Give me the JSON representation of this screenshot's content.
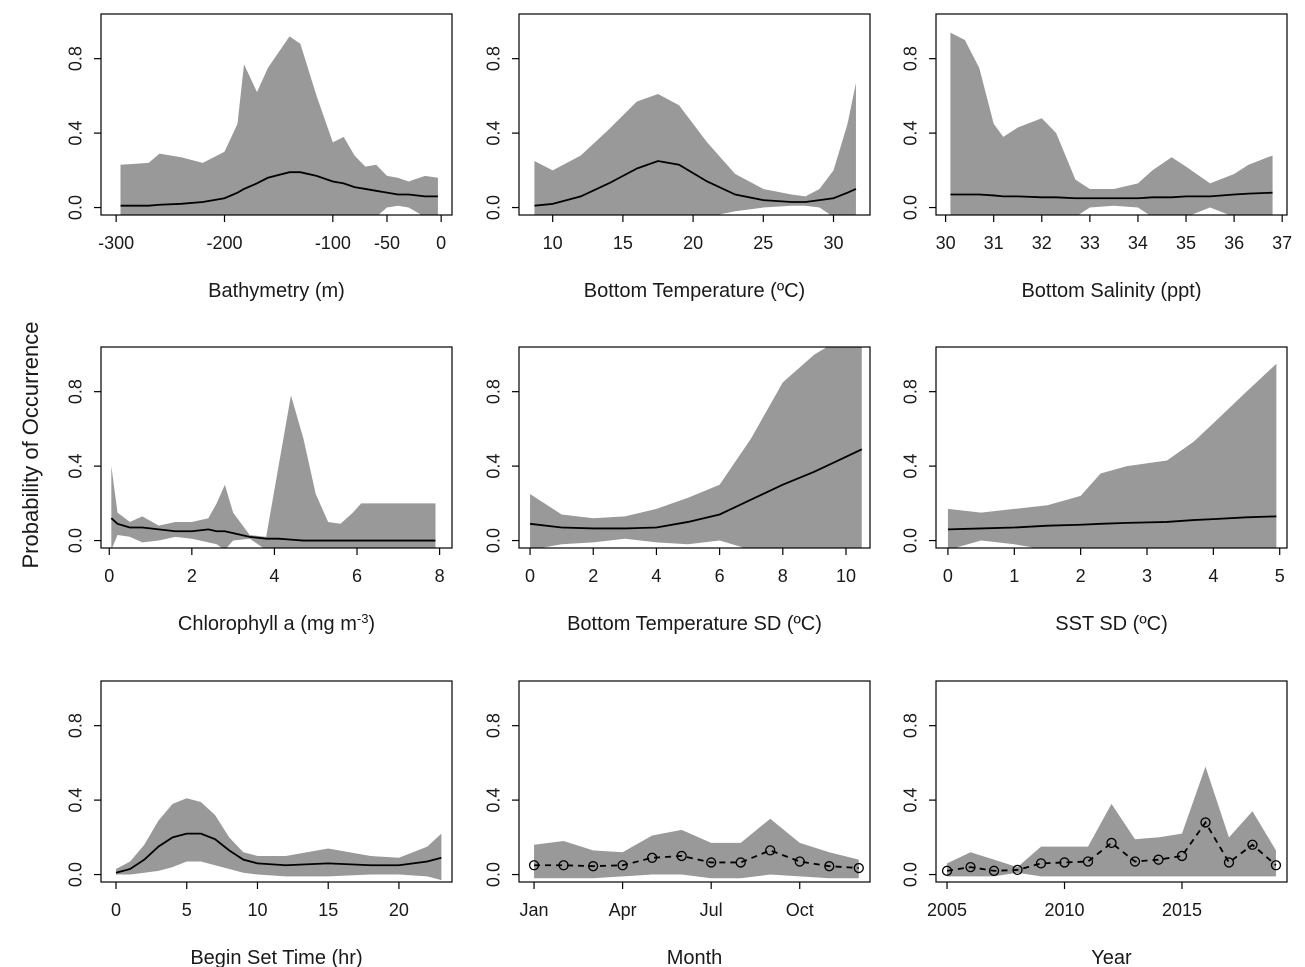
{
  "ylabel": "Probability of Occurrence",
  "chart_data": [
    {
      "type": "line",
      "xlabel": "Bathymetry (m)",
      "xlim": [
        -314,
        10
      ],
      "xticks": [
        -300,
        -200,
        -100,
        -50,
        0
      ],
      "ylim": [
        -0.04,
        1.04
      ],
      "yticks": [
        {
          "value": 0,
          "label": "0.0"
        },
        0.4,
        0.8
      ],
      "x": [
        -296,
        -270,
        -260,
        -240,
        -220,
        -200,
        -188,
        -182,
        -170,
        -160,
        -140,
        -130,
        -115,
        -100,
        -90,
        -80,
        -70,
        -60,
        -50,
        -40,
        -30,
        -15,
        -3
      ],
      "series": [
        {
          "color": "#000000",
          "values": [
            0.01,
            0.01,
            0.015,
            0.02,
            0.03,
            0.05,
            0.08,
            0.1,
            0.13,
            0.16,
            0.19,
            0.19,
            0.17,
            0.14,
            0.13,
            0.11,
            0.1,
            0.09,
            0.08,
            0.07,
            0.07,
            0.06,
            0.06
          ]
        }
      ],
      "band": {
        "color": "#999999",
        "upper": [
          0.23,
          0.24,
          0.29,
          0.27,
          0.24,
          0.3,
          0.45,
          0.77,
          0.62,
          0.75,
          0.92,
          0.88,
          0.6,
          0.35,
          0.38,
          0.28,
          0.22,
          0.23,
          0.17,
          0.16,
          0.14,
          0.17,
          0.16
        ],
        "lower": [
          -0.05,
          -0.05,
          -0.05,
          -0.05,
          -0.05,
          -0.05,
          -0.05,
          -0.05,
          -0.05,
          -0.05,
          -0.05,
          -0.05,
          -0.05,
          -0.05,
          -0.05,
          -0.05,
          -0.05,
          -0.05,
          0.0,
          0.01,
          0.0,
          -0.05,
          -0.05
        ]
      }
    },
    {
      "type": "line",
      "xlabel": "Bottom Temperature (ºC)",
      "xlim": [
        7.6,
        32.6
      ],
      "xticks": [
        10,
        15,
        20,
        25,
        30
      ],
      "ylim": [
        -0.04,
        1.04
      ],
      "yticks": [
        {
          "value": 0,
          "label": "0.0"
        },
        0.4,
        0.8
      ],
      "x": [
        8.7,
        10,
        12,
        14,
        16,
        17.5,
        19,
        21,
        23,
        25,
        27,
        28,
        29,
        30,
        31,
        31.6
      ],
      "series": [
        {
          "color": "#000000",
          "values": [
            0.01,
            0.02,
            0.06,
            0.13,
            0.21,
            0.25,
            0.23,
            0.14,
            0.07,
            0.04,
            0.03,
            0.03,
            0.04,
            0.05,
            0.08,
            0.1
          ]
        }
      ],
      "band": {
        "color": "#999999",
        "upper": [
          0.25,
          0.2,
          0.28,
          0.42,
          0.57,
          0.61,
          0.55,
          0.35,
          0.18,
          0.1,
          0.07,
          0.06,
          0.1,
          0.2,
          0.45,
          0.67
        ],
        "lower": [
          -0.05,
          -0.05,
          -0.05,
          -0.05,
          -0.05,
          -0.05,
          -0.05,
          -0.05,
          -0.02,
          0.0,
          0.01,
          0.01,
          0.0,
          -0.05,
          -0.05,
          -0.05
        ]
      }
    },
    {
      "type": "line",
      "xlabel": "Bottom Salinity (ppt)",
      "xlim": [
        29.8,
        37.1
      ],
      "xticks": [
        30,
        31,
        32,
        33,
        34,
        35,
        36,
        37
      ],
      "ylim": [
        -0.04,
        1.04
      ],
      "yticks": [
        {
          "value": 0,
          "label": "0.0"
        },
        0.4,
        0.8
      ],
      "x": [
        30.1,
        30.4,
        30.7,
        31,
        31.2,
        31.5,
        32,
        32.3,
        32.7,
        33,
        33.5,
        34,
        34.3,
        34.7,
        35,
        35.5,
        36,
        36.3,
        36.8
      ],
      "series": [
        {
          "color": "#000000",
          "values": [
            0.07,
            0.07,
            0.07,
            0.065,
            0.06,
            0.06,
            0.055,
            0.055,
            0.05,
            0.05,
            0.05,
            0.05,
            0.055,
            0.055,
            0.06,
            0.06,
            0.07,
            0.075,
            0.08
          ]
        }
      ],
      "band": {
        "color": "#999999",
        "upper": [
          0.94,
          0.9,
          0.75,
          0.45,
          0.38,
          0.43,
          0.48,
          0.4,
          0.15,
          0.1,
          0.1,
          0.13,
          0.2,
          0.27,
          0.22,
          0.13,
          0.18,
          0.23,
          0.28
        ],
        "lower": [
          -0.05,
          -0.05,
          -0.05,
          -0.05,
          -0.05,
          -0.05,
          -0.05,
          -0.05,
          -0.05,
          0.0,
          0.01,
          0.0,
          -0.05,
          -0.05,
          -0.05,
          0.0,
          -0.05,
          -0.05,
          -0.05
        ]
      }
    },
    {
      "type": "line",
      "xlabel": [
        "Chlorophyll a (mg m",
        "-3",
        ")"
      ],
      "xlim": [
        -0.2,
        8.3
      ],
      "xticks": [
        0,
        2,
        4,
        6,
        8
      ],
      "ylim": [
        -0.04,
        1.04
      ],
      "yticks": [
        {
          "value": 0,
          "label": "0.0"
        },
        0.4,
        0.8
      ],
      "x": [
        0.05,
        0.2,
        0.5,
        0.8,
        1.2,
        1.6,
        2,
        2.4,
        2.6,
        2.8,
        3,
        3.4,
        3.8,
        4.1,
        4.4,
        4.7,
        5,
        5.3,
        5.6,
        5.9,
        6.1,
        6.5,
        7,
        7.9
      ],
      "series": [
        {
          "color": "#000000",
          "values": [
            0.12,
            0.09,
            0.07,
            0.07,
            0.06,
            0.05,
            0.05,
            0.06,
            0.05,
            0.05,
            0.04,
            0.02,
            0.01,
            0.01,
            0.005,
            0,
            0,
            0,
            0,
            0,
            0,
            0,
            0,
            0
          ]
        }
      ],
      "band": {
        "color": "#999999",
        "upper": [
          0.4,
          0.15,
          0.1,
          0.13,
          0.08,
          0.1,
          0.1,
          0.12,
          0.2,
          0.3,
          0.15,
          0.03,
          0.02,
          0.4,
          0.78,
          0.55,
          0.25,
          0.1,
          0.09,
          0.15,
          0.2,
          0.2,
          0.2,
          0.2
        ],
        "lower": [
          -0.05,
          0.03,
          0.02,
          -0.01,
          0.0,
          0.02,
          0.01,
          -0.01,
          -0.02,
          -0.05,
          0.0,
          0.01,
          -0.05,
          -0.05,
          -0.05,
          -0.05,
          -0.05,
          -0.05,
          -0.05,
          -0.05,
          -0.05,
          -0.05,
          -0.05,
          -0.05
        ]
      }
    },
    {
      "type": "line",
      "xlabel": "Bottom Temperature SD (ºC)",
      "xlim": [
        -0.35,
        10.76
      ],
      "xticks": [
        0,
        2,
        4,
        6,
        8,
        10
      ],
      "ylim": [
        -0.04,
        1.04
      ],
      "yticks": [
        {
          "value": 0,
          "label": "0.0"
        },
        0.4,
        0.8
      ],
      "x": [
        0,
        1,
        2,
        3,
        4,
        5,
        6,
        7,
        8,
        9,
        10,
        10.5
      ],
      "series": [
        {
          "color": "#000000",
          "values": [
            0.09,
            0.07,
            0.065,
            0.065,
            0.07,
            0.1,
            0.14,
            0.22,
            0.3,
            0.37,
            0.45,
            0.49
          ]
        }
      ],
      "band": {
        "color": "#999999",
        "upper": [
          0.25,
          0.14,
          0.12,
          0.13,
          0.17,
          0.23,
          0.3,
          0.55,
          0.85,
          1.0,
          1.1,
          1.1
        ],
        "lower": [
          -0.05,
          -0.02,
          -0.01,
          0.01,
          -0.01,
          -0.02,
          0.0,
          -0.05,
          -0.05,
          -0.05,
          -0.05,
          -0.05
        ]
      }
    },
    {
      "type": "line",
      "xlabel": "SST SD (ºC)",
      "xlim": [
        -0.18,
        5.11
      ],
      "xticks": [
        0,
        1,
        2,
        3,
        4,
        5
      ],
      "ylim": [
        -0.04,
        1.04
      ],
      "yticks": [
        {
          "value": 0,
          "label": "0.0"
        },
        0.4,
        0.8
      ],
      "x": [
        0,
        0.5,
        1,
        1.5,
        2,
        2.3,
        2.7,
        3.3,
        3.7,
        4,
        4.5,
        4.95
      ],
      "series": [
        {
          "color": "#000000",
          "values": [
            0.06,
            0.065,
            0.07,
            0.08,
            0.085,
            0.09,
            0.095,
            0.1,
            0.11,
            0.115,
            0.125,
            0.13
          ]
        }
      ],
      "band": {
        "color": "#999999",
        "upper": [
          0.17,
          0.15,
          0.17,
          0.19,
          0.24,
          0.36,
          0.4,
          0.43,
          0.53,
          0.63,
          0.8,
          0.95
        ],
        "lower": [
          -0.05,
          0.0,
          -0.02,
          -0.05,
          -0.05,
          -0.05,
          -0.05,
          -0.05,
          -0.05,
          -0.05,
          -0.05,
          -0.05
        ]
      }
    },
    {
      "type": "line",
      "xlabel": "Begin Set Time (hr)",
      "xlim": [
        -1.06,
        23.75
      ],
      "xticks": [
        0,
        5,
        10,
        15,
        20
      ],
      "ylim": [
        -0.04,
        1.04
      ],
      "yticks": [
        {
          "value": 0,
          "label": "0.0"
        },
        0.4,
        0.8
      ],
      "x": [
        0,
        1,
        2,
        3,
        4,
        5,
        6,
        7,
        8,
        9,
        10,
        12,
        15,
        18,
        20,
        22,
        23
      ],
      "series": [
        {
          "color": "#000000",
          "values": [
            0.01,
            0.03,
            0.08,
            0.15,
            0.2,
            0.22,
            0.22,
            0.19,
            0.13,
            0.08,
            0.06,
            0.05,
            0.06,
            0.05,
            0.05,
            0.07,
            0.09
          ]
        }
      ],
      "band": {
        "color": "#999999",
        "upper": [
          0.03,
          0.07,
          0.16,
          0.29,
          0.38,
          0.41,
          0.39,
          0.32,
          0.2,
          0.12,
          0.1,
          0.1,
          0.14,
          0.1,
          0.09,
          0.15,
          0.22
        ],
        "lower": [
          0.0,
          0.0,
          0.01,
          0.02,
          0.04,
          0.07,
          0.07,
          0.05,
          0.03,
          0.01,
          0.0,
          -0.01,
          -0.01,
          0.0,
          0.0,
          -0.01,
          -0.03
        ]
      }
    },
    {
      "type": "line",
      "xlabel": "Month",
      "xlim": [
        0.49,
        12.38
      ],
      "xticks": [
        {
          "value": 1,
          "label": "Jan"
        },
        {
          "value": 4,
          "label": "Apr"
        },
        {
          "value": 7,
          "label": "Jul"
        },
        {
          "value": 10,
          "label": "Oct"
        }
      ],
      "ylim": [
        -0.04,
        1.04
      ],
      "yticks": [
        {
          "value": 0,
          "label": "0.0"
        },
        0.4,
        0.8
      ],
      "markers": true,
      "dashed": true,
      "x": [
        1,
        2,
        3,
        4,
        5,
        6,
        7,
        8,
        9,
        10,
        11,
        12
      ],
      "series": [
        {
          "color": "#000000",
          "values": [
            0.05,
            0.05,
            0.045,
            0.05,
            0.09,
            0.1,
            0.065,
            0.065,
            0.13,
            0.07,
            0.045,
            0.035
          ]
        }
      ],
      "band": {
        "color": "#999999",
        "upper": [
          0.16,
          0.18,
          0.13,
          0.12,
          0.21,
          0.24,
          0.17,
          0.17,
          0.3,
          0.17,
          0.12,
          0.08
        ],
        "lower": [
          -0.02,
          -0.02,
          -0.02,
          -0.01,
          0.0,
          0.0,
          -0.02,
          -0.02,
          0.0,
          -0.01,
          -0.02,
          -0.02
        ]
      }
    },
    {
      "type": "line",
      "xlabel": "Year",
      "xlim": [
        2004.53,
        2019.47
      ],
      "xticks": [
        2005,
        2010,
        2015
      ],
      "ylim": [
        -0.04,
        1.04
      ],
      "yticks": [
        {
          "value": 0,
          "label": "0.0"
        },
        0.4,
        0.8
      ],
      "markers": true,
      "dashed": true,
      "x": [
        2005,
        2006,
        2007,
        2008,
        2009,
        2010,
        2011,
        2012,
        2013,
        2014,
        2015,
        2016,
        2017,
        2018,
        2019
      ],
      "series": [
        {
          "color": "#000000",
          "values": [
            0.02,
            0.04,
            0.02,
            0.025,
            0.06,
            0.065,
            0.07,
            0.17,
            0.07,
            0.08,
            0.1,
            0.28,
            0.065,
            0.16,
            0.05
          ]
        }
      ],
      "band": {
        "color": "#999999",
        "upper": [
          0.06,
          0.12,
          0.08,
          0.04,
          0.15,
          0.15,
          0.15,
          0.38,
          0.19,
          0.2,
          0.22,
          0.58,
          0.2,
          0.34,
          0.13
        ],
        "lower": [
          -0.01,
          -0.01,
          -0.01,
          0.01,
          -0.01,
          -0.01,
          -0.01,
          -0.01,
          -0.01,
          -0.01,
          -0.01,
          -0.01,
          -0.01,
          -0.01,
          -0.01
        ]
      }
    }
  ]
}
